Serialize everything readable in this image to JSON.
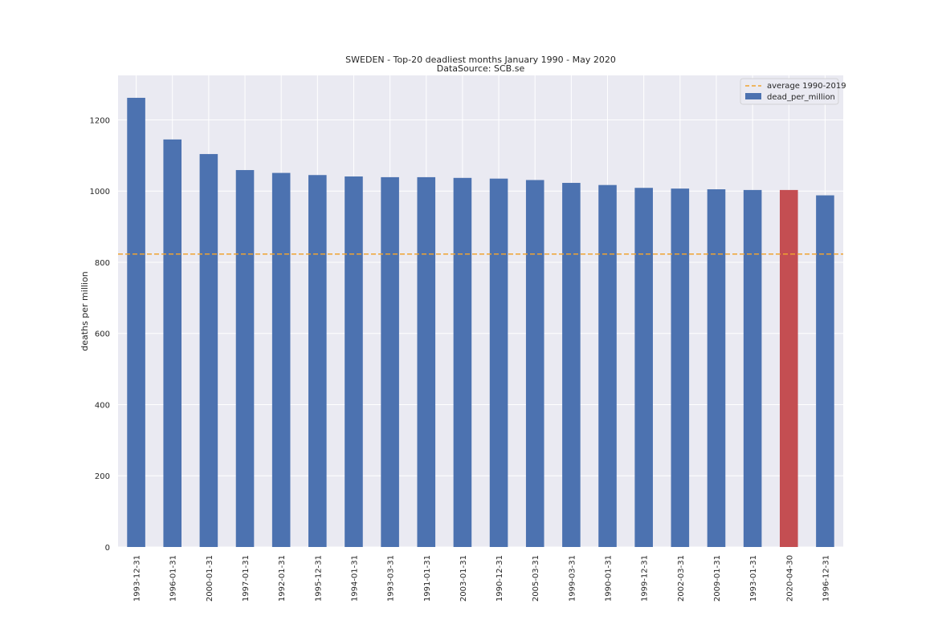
{
  "chart_data": {
    "type": "bar",
    "title": "SWEDEN - Top-20 deadliest months January 1990 - May 2020",
    "subtitle": "DataSource: SCB.se",
    "xlabel": "",
    "ylabel": "deaths per million",
    "ylim": [
      0,
      1325
    ],
    "yticks": [
      0,
      200,
      400,
      600,
      800,
      1000,
      1200
    ],
    "grid": true,
    "legend_position": "top-right",
    "categories": [
      "1993-12-31",
      "1996-01-31",
      "2000-01-31",
      "1997-01-31",
      "1992-01-31",
      "1995-12-31",
      "1994-01-31",
      "1993-03-31",
      "1991-01-31",
      "2003-01-31",
      "1990-12-31",
      "2005-03-31",
      "1999-03-31",
      "1990-01-31",
      "1999-12-31",
      "2002-03-31",
      "2009-01-31",
      "1993-01-31",
      "2020-04-30",
      "1996-12-31"
    ],
    "series": [
      {
        "name": "dead_per_million",
        "values": [
          1262,
          1145,
          1104,
          1059,
          1051,
          1045,
          1041,
          1039,
          1039,
          1037,
          1035,
          1031,
          1023,
          1017,
          1009,
          1007,
          1005,
          1003,
          1003,
          988
        ],
        "color": "#4c72b0",
        "highlight_color": "#c44e52",
        "highlight_index": 18
      }
    ],
    "reference_line": {
      "name": "average 1990-2019",
      "value": 823,
      "color": "#f0a330",
      "style": "dashed"
    },
    "background_color": "#eaeaf2",
    "grid_color": "#ffffff"
  }
}
